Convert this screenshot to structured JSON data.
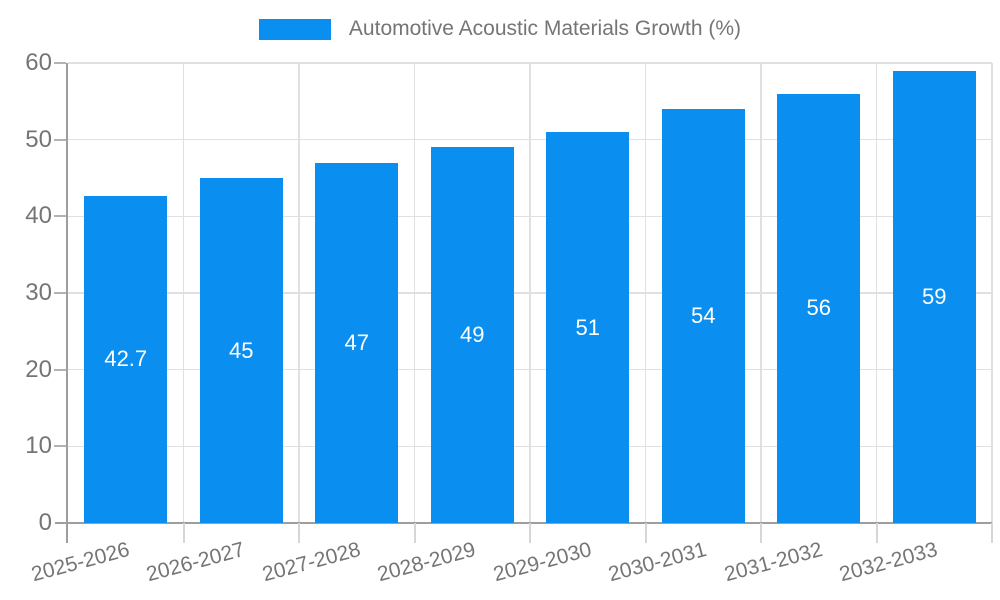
{
  "legend": {
    "label": "Automotive Acoustic Materials Growth (%)"
  },
  "chart_data": {
    "type": "bar",
    "title": "Automotive Acoustic Materials Growth (%)",
    "categories": [
      "2025-2026",
      "2026-2027",
      "2027-2028",
      "2028-2029",
      "2029-2030",
      "2030-2031",
      "2031-2032",
      "2032-2033"
    ],
    "series": [
      {
        "name": "Automotive Acoustic Materials Growth (%)",
        "values": [
          42.7,
          45,
          47,
          49,
          51,
          54,
          56,
          59
        ]
      }
    ],
    "value_labels": [
      "42.7",
      "45",
      "47",
      "49",
      "51",
      "54",
      "56",
      "59"
    ],
    "xlabel": "",
    "ylabel": "",
    "ylim": [
      0,
      60
    ],
    "yticks": [
      0,
      10,
      20,
      30,
      40,
      50,
      60
    ],
    "grid": true,
    "legend_position": "top",
    "value_label_position": "inside-middle",
    "x_label_rotation_deg": -15
  },
  "colors": {
    "bar": "#0a8ff0",
    "axis": "#9e9e9e",
    "grid": "#e0e0e0",
    "tick_y": "#b3b3b3",
    "tick_x": "#d6d6d6",
    "label_text": "#757575",
    "value_text": "#ffffff",
    "background": "#ffffff"
  }
}
